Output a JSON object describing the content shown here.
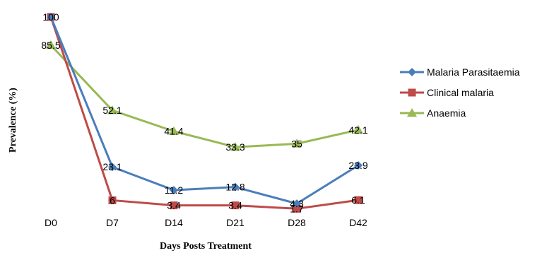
{
  "chart_data": {
    "type": "line",
    "title": "",
    "xlabel": "Days  Posts Treatment",
    "ylabel": "Prevalence (%)",
    "categories": [
      "D0",
      "D7",
      "D14",
      "D21",
      "D28",
      "D42"
    ],
    "ylim": [
      0,
      100
    ],
    "grid": false,
    "legend_position": "right",
    "series": [
      {
        "name": "Malaria Parasitaemia",
        "color": "#4a7ebb",
        "marker": "diamond",
        "values": [
          100,
          23.1,
          11.2,
          12.8,
          4.3,
          23.9
        ],
        "labels": [
          "",
          "23.1",
          "11.2",
          "12.8",
          "4.3",
          "23.9"
        ]
      },
      {
        "name": "Clinical malaria",
        "color": "#be4b48",
        "marker": "square",
        "values": [
          100,
          6,
          3.4,
          3.4,
          1.7,
          6.1
        ],
        "labels": [
          "100",
          "6",
          "3.4",
          "3.4",
          "1.7",
          "6.1"
        ]
      },
      {
        "name": "Anaemia",
        "color": "#98b954",
        "marker": "triangle",
        "values": [
          85.5,
          52.1,
          41.4,
          33.3,
          35,
          42.1
        ],
        "labels": [
          "85.5",
          "52.1",
          "41.4",
          "33.3",
          "35",
          "42.1"
        ]
      }
    ]
  }
}
